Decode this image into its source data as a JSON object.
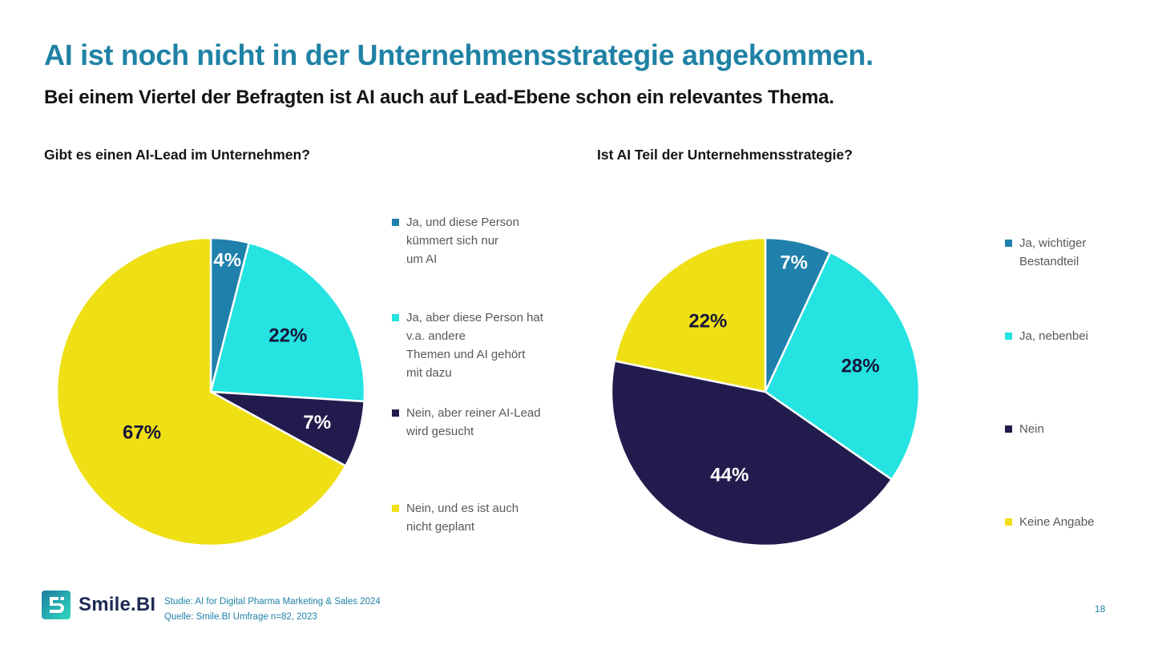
{
  "slide": {
    "title": "AI ist noch nicht in der Unternehmensstrategie angekommen.",
    "subtitle": "Bei einem Viertel der Befragten ist AI auch auf Lead-Ebene schon ein relevantes Thema.",
    "page_number": "18"
  },
  "footer": {
    "logo_text": "Smile.BI",
    "source_lines": [
      "Studie: AI for Digital Pharma Marketing & Sales 2024",
      "Quelle: Smile.BI Umfrage n=82, 2023"
    ]
  },
  "colors": {
    "title_teal": "#1F82A5",
    "accent_blue": "#1E80AB",
    "accent_cyan": "#24E3E1",
    "accent_navy": "#221C4E",
    "accent_yellow": "#EFDF15",
    "pct_dark": "#16163A",
    "legend_text_gray": "#595959",
    "logo_navy": "#1D2A55"
  },
  "chart_data": [
    {
      "type": "pie",
      "title": "Gibt es einen AI-Lead im Unternehmen?",
      "legend_position": "right",
      "start_angle_deg": 0,
      "slices": [
        {
          "label": "Ja, und diese Person\nkümmert sich nur\num AI",
          "value": 4,
          "pct_label": "4%",
          "color": "#1E80AB",
          "pct_color": "#FFFFFF",
          "label_r": 0.86
        },
        {
          "label": "Ja, aber diese Person hat\nv.a. andere\nThemen und AI gehört\nmit dazu",
          "value": 22,
          "pct_label": "22%",
          "color": "#24E3E1",
          "pct_color": "#16163A",
          "label_r": 0.62
        },
        {
          "label": "Nein, aber reiner AI-Lead\nwird gesucht",
          "value": 7,
          "pct_label": "7%",
          "color": "#221C4E",
          "pct_color": "#FFFFFF",
          "label_r": 0.72
        },
        {
          "label": "Nein, und es ist auch\nnicht geplant",
          "value": 67,
          "pct_label": "67%",
          "color": "#EFDF15",
          "pct_color": "#16163A",
          "label_r": 0.52
        }
      ]
    },
    {
      "type": "pie",
      "title": "Ist AI Teil der Unternehmensstrategie?",
      "legend_position": "right",
      "start_angle_deg": 0,
      "slices": [
        {
          "label": "Ja, wichtiger\nBestandteil",
          "value": 7,
          "pct_label": "7%",
          "color": "#1E80AB",
          "pct_color": "#FFFFFF",
          "label_r": 0.86
        },
        {
          "label": "Ja, nebenbei",
          "value": 28,
          "pct_label": "28%",
          "color": "#24E3E1",
          "pct_color": "#16163A",
          "label_r": 0.64
        },
        {
          "label": "Nein",
          "value": 44,
          "pct_label": "44%",
          "color": "#221C4E",
          "pct_color": "#FFFFFF",
          "label_r": 0.59
        },
        {
          "label": "Keine Angabe",
          "value": 22,
          "pct_label": "22%",
          "color": "#EFDF15",
          "pct_color": "#16163A",
          "label_r": 0.59
        }
      ]
    }
  ]
}
